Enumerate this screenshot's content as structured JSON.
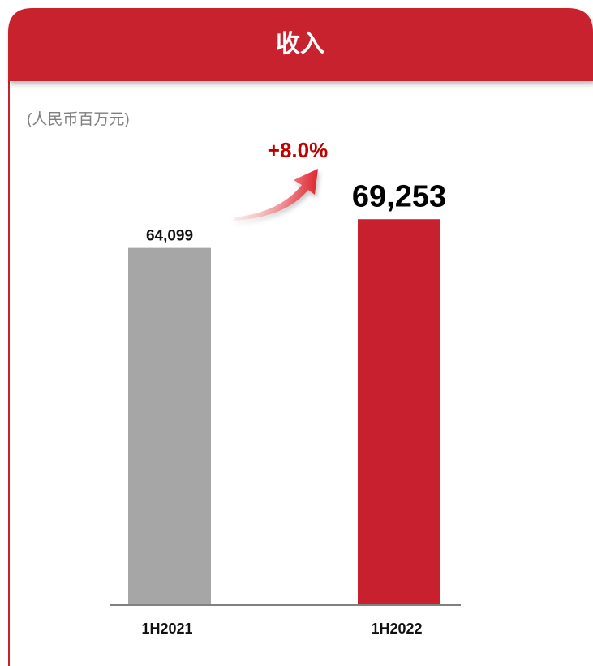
{
  "chart_data": {
    "type": "bar",
    "title": "收入",
    "subtitle": "(人民币百万元)",
    "annotation": "+8.0%",
    "categories": [
      "1H2021",
      "1H2022"
    ],
    "values": [
      64099,
      69253
    ],
    "value_labels": [
      "64,099",
      "69,253"
    ],
    "colors": [
      "#a6a6a6",
      "#c8202f"
    ],
    "ylim": [
      0,
      100000
    ],
    "grid": false
  }
}
